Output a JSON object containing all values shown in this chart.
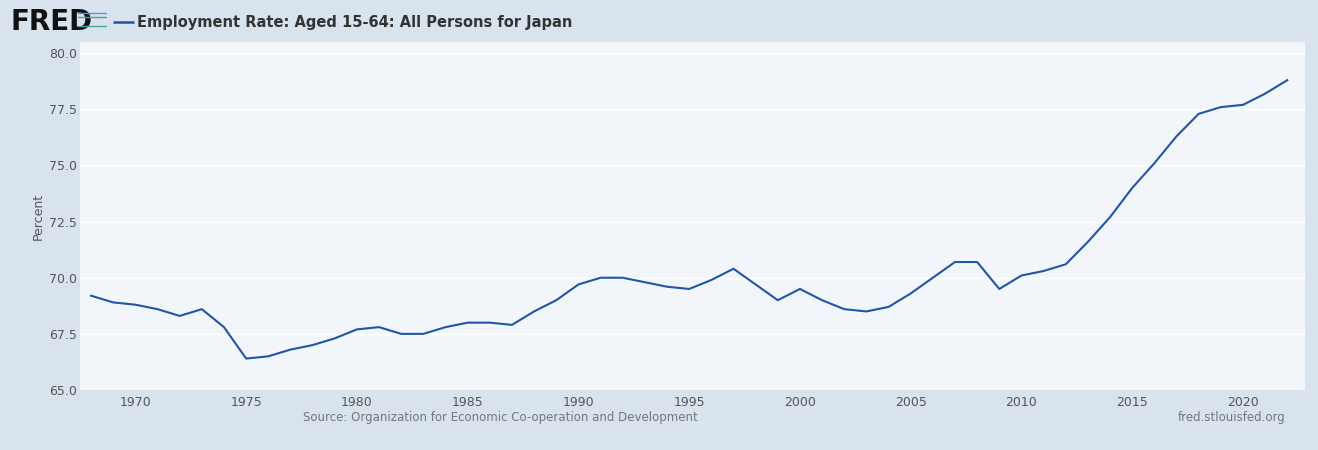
{
  "title": "Employment Rate: Aged 15-64: All Persons for Japan",
  "ylabel": "Percent",
  "source_left": "Source: Organization for Economic Co-operation and Development",
  "source_right": "fred.stlouisfed.org",
  "line_color": "#2255a4",
  "background_color": "#d8e3ed",
  "plot_bg_color": "#f2f6fb",
  "grid_color": "#ffffff",
  "ylim": [
    65.0,
    80.5
  ],
  "yticks": [
    65.0,
    67.5,
    70.0,
    72.5,
    75.0,
    77.5,
    80.0
  ],
  "years": [
    1968,
    1969,
    1970,
    1971,
    1972,
    1973,
    1974,
    1975,
    1976,
    1977,
    1978,
    1979,
    1980,
    1981,
    1982,
    1983,
    1984,
    1985,
    1986,
    1987,
    1988,
    1989,
    1990,
    1991,
    1992,
    1993,
    1994,
    1995,
    1996,
    1997,
    1998,
    1999,
    2000,
    2001,
    2002,
    2003,
    2004,
    2005,
    2006,
    2007,
    2008,
    2009,
    2010,
    2011,
    2012,
    2013,
    2014,
    2015,
    2016,
    2017,
    2018,
    2019,
    2020,
    2021,
    2022
  ],
  "values": [
    69.2,
    68.9,
    68.8,
    68.6,
    68.3,
    68.6,
    67.8,
    66.4,
    66.5,
    66.8,
    67.0,
    67.3,
    67.7,
    67.8,
    67.5,
    67.5,
    67.8,
    68.0,
    68.0,
    67.9,
    68.5,
    69.0,
    69.7,
    70.0,
    70.0,
    69.8,
    69.6,
    69.5,
    69.9,
    70.4,
    69.7,
    69.0,
    69.5,
    69.0,
    68.6,
    68.5,
    68.7,
    69.3,
    70.0,
    70.7,
    70.7,
    69.5,
    70.1,
    70.3,
    70.6,
    71.6,
    72.7,
    74.0,
    75.1,
    76.3,
    77.3,
    77.6,
    77.7,
    78.2,
    78.8
  ],
  "xtick_years": [
    1970,
    1975,
    1980,
    1985,
    1990,
    1995,
    2000,
    2005,
    2010,
    2015,
    2020
  ],
  "xlim_min": 1967.5,
  "xlim_max": 2022.8,
  "line_width": 1.5,
  "tick_fontsize": 9,
  "label_fontsize": 9,
  "header_title_fontsize": 10.5
}
